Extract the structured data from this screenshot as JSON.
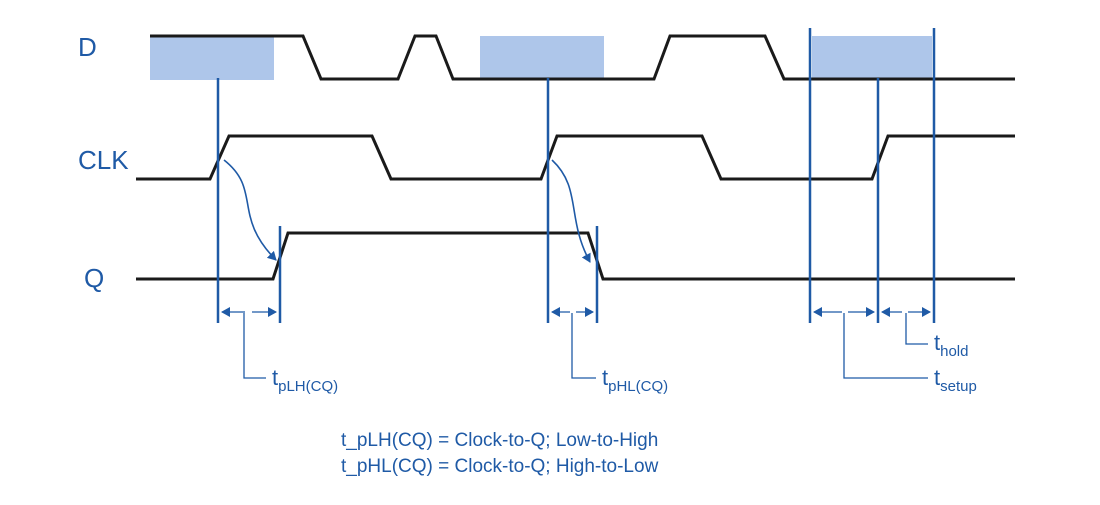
{
  "colors": {
    "accent": "#1f5aa6",
    "wave": "#1a1a1a",
    "highlight": "#aec6ea",
    "background": "#ffffff"
  },
  "signals": {
    "d": "D",
    "clk": "CLK",
    "q": "Q"
  },
  "timing": {
    "tplh": {
      "t": "t",
      "sub": "pLH(CQ)"
    },
    "tphl": {
      "t": "t",
      "sub": "pHL(CQ)"
    },
    "thold": {
      "t": "t",
      "sub": "hold"
    },
    "tsetup": {
      "t": "t",
      "sub": "setup"
    }
  },
  "legend": {
    "line1": "t_pLH(CQ) = Clock-to-Q; Low-to-High",
    "line2": "t_pHL(CQ) = Clock-to-Q; High-to-Low"
  }
}
